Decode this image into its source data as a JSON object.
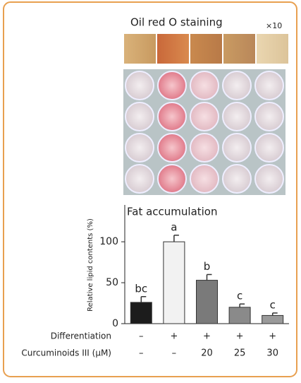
{
  "chart_data": {
    "type": "bar",
    "image_title": "Oil red O staining",
    "magnification": "×10",
    "title": "Fat accumulation",
    "y_label": "Relative lipid contents (%)",
    "categories": [
      null,
      null,
      null,
      null,
      null
    ],
    "values": [
      26,
      100,
      53,
      20,
      10
    ],
    "errors": [
      7,
      8,
      7,
      4,
      3
    ],
    "significance_labels": [
      "bc",
      "a",
      "b",
      "c",
      "c"
    ],
    "colors": [
      "#1c1c1c",
      "#f2f2f2",
      "#7a7a7a",
      "#8a8a8a",
      "#9a9a9a"
    ],
    "ylim": [
      0,
      145
    ],
    "yticks": [
      0,
      50,
      100
    ],
    "conditions": [
      {
        "label": "Differentiation",
        "values": [
          "–",
          "+",
          "+",
          "+",
          "+"
        ]
      },
      {
        "label": "Curcuminoids III (μM)",
        "values": [
          "–",
          "–",
          "20",
          "25",
          "30"
        ]
      }
    ]
  }
}
